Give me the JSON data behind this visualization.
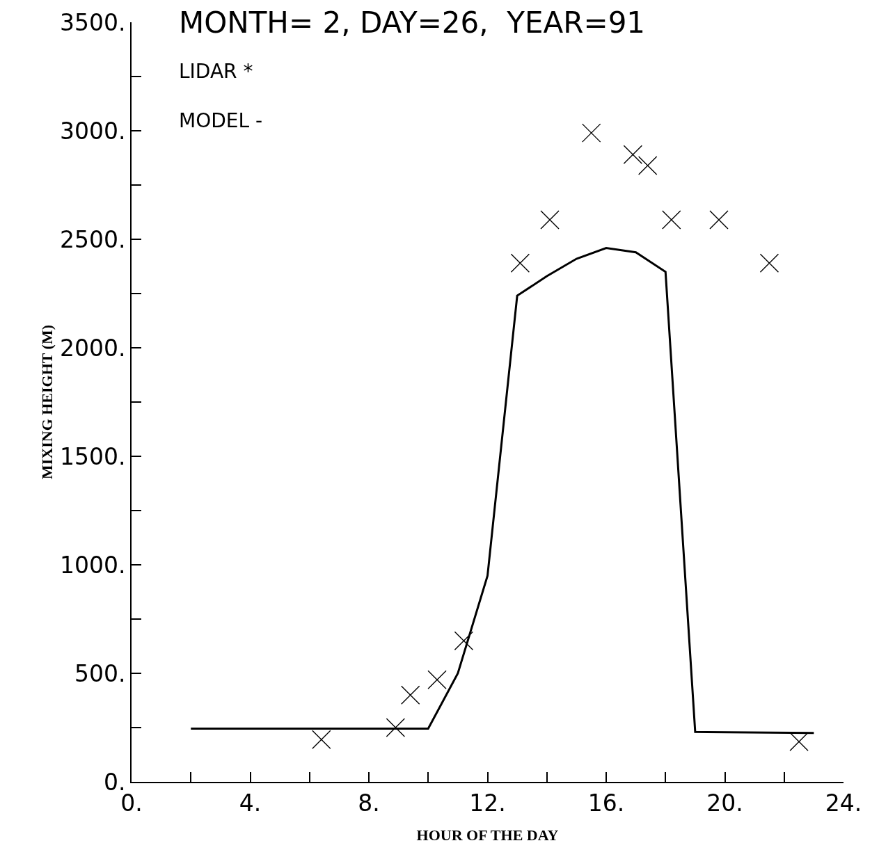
{
  "chart_data": {
    "type": "line",
    "title": "MONTH= 2, DAY=26,  YEAR=91",
    "xlabel": "HOUR OF THE DAY",
    "ylabel": "MIXING HEIGHT (M)",
    "annotations": [
      "LIDAR *",
      "MODEL -"
    ],
    "series": [
      {
        "color": "#000000",
        "marker": "none",
        "line_style": "solid",
        "x": [
          2,
          10,
          11,
          12,
          13,
          14,
          15,
          16,
          17,
          18,
          19,
          23
        ],
        "values": [
          245,
          245,
          500,
          950,
          2240,
          2330,
          2410,
          2460,
          2440,
          2350,
          230,
          225
        ]
      },
      {
        "type": "scatter",
        "color": "#000000",
        "marker": "cross",
        "x": [
          6.4,
          8.9,
          9.4,
          10.3,
          11.2,
          13.1,
          14.1,
          15.5,
          16.9,
          17.4,
          18.2,
          19.8,
          21.5,
          22.5
        ],
        "values": [
          195,
          250,
          400,
          470,
          650,
          2390,
          2590,
          2990,
          2890,
          2840,
          2590,
          2590,
          2390,
          185
        ]
      }
    ],
    "xlim": [
      0,
      24
    ],
    "ylim": [
      0,
      3500
    ],
    "xticks": [
      {
        "value": 0,
        "label": "0."
      },
      {
        "value": 2,
        "label": null
      },
      {
        "value": 4,
        "label": "4."
      },
      {
        "value": 6,
        "label": null
      },
      {
        "value": 8,
        "label": "8."
      },
      {
        "value": 10,
        "label": null
      },
      {
        "value": 12,
        "label": "12."
      },
      {
        "value": 14,
        "label": null
      },
      {
        "value": 16,
        "label": "16."
      },
      {
        "value": 18,
        "label": null
      },
      {
        "value": 20,
        "label": "20."
      },
      {
        "value": 22,
        "label": null
      },
      {
        "value": 24,
        "label": "24."
      }
    ],
    "yticks": [
      {
        "value": 0,
        "label": "0."
      },
      {
        "value": 250,
        "label": null
      },
      {
        "value": 500,
        "label": "500."
      },
      {
        "value": 750,
        "label": null
      },
      {
        "value": 1000,
        "label": "1000."
      },
      {
        "value": 1250,
        "label": null
      },
      {
        "value": 1500,
        "label": "1500."
      },
      {
        "value": 1750,
        "label": null
      },
      {
        "value": 2000,
        "label": "2000."
      },
      {
        "value": 2250,
        "label": null
      },
      {
        "value": 2500,
        "label": "2500."
      },
      {
        "value": 2750,
        "label": null
      },
      {
        "value": 3000,
        "label": "3000."
      },
      {
        "value": 3250,
        "label": null
      },
      {
        "value": 3500,
        "label": "3500."
      }
    ]
  }
}
